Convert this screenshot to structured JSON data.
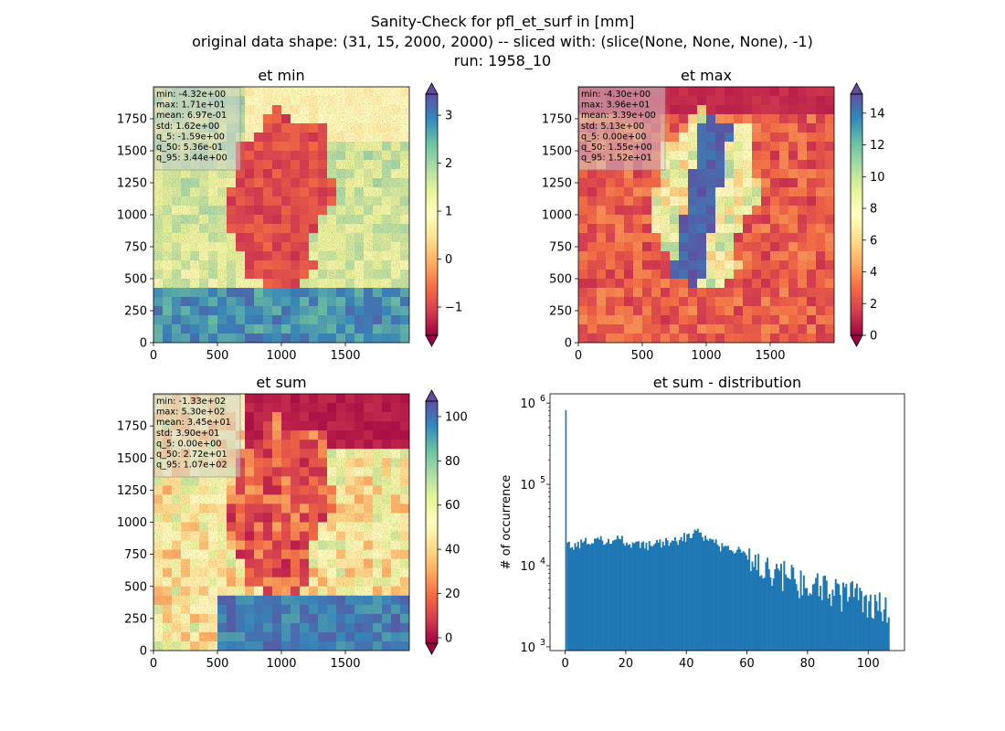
{
  "suptitle": {
    "line1": "Sanity-Check for pfl_et_surf in [mm]",
    "line2": "original data shape: (31, 15, 2000, 2000) -- sliced with: (slice(None, None, None), -1)",
    "line3": "run: 1958_10"
  },
  "colors": {
    "hist_bar": "#1f77b4",
    "stats_box_bg": "#d3d3d3",
    "colormap": "Spectral",
    "colormap_stops": [
      "#9e0142",
      "#d53e4f",
      "#f46d43",
      "#fdae61",
      "#fee08b",
      "#ffffbf",
      "#e6f598",
      "#abdda4",
      "#66c2a5",
      "#3288bd",
      "#5e4fa2"
    ]
  },
  "chart_data": [
    {
      "type": "heatmap",
      "title": "et min",
      "xlim": [
        0,
        2000
      ],
      "ylim": [
        0,
        2000
      ],
      "xticks": [
        "0",
        "500",
        "1000",
        "1500"
      ],
      "yticks": [
        "0",
        "250",
        "500",
        "750",
        "1000",
        "1250",
        "1500",
        "1750"
      ],
      "colorbar": {
        "min": -1.59,
        "max": 3.44,
        "extend": "both",
        "ticks": [
          "−1",
          "0",
          "1",
          "2",
          "3"
        ],
        "tick_values": [
          -1,
          0,
          1,
          2,
          3
        ]
      },
      "stats": [
        "min: -4.32e+00",
        "max: 1.71e+01",
        "mean: 6.97e-01",
        "std: 1.62e+00",
        "q_5: -1.59e+00",
        "q_50: 5.36e-01",
        "q_95: 3.44e+00"
      ]
    },
    {
      "type": "heatmap",
      "title": "et max",
      "xlim": [
        0,
        2000
      ],
      "ylim": [
        0,
        2000
      ],
      "xticks": [
        "0",
        "500",
        "1000",
        "1500"
      ],
      "yticks": [
        "0",
        "250",
        "500",
        "750",
        "1000",
        "1250",
        "1500",
        "1750"
      ],
      "colorbar": {
        "min": 0,
        "max": 15.2,
        "extend": "both",
        "ticks": [
          "0",
          "2",
          "4",
          "6",
          "8",
          "10",
          "12",
          "14"
        ],
        "tick_values": [
          0,
          2,
          4,
          6,
          8,
          10,
          12,
          14
        ]
      },
      "stats": [
        "min: -4.30e+00",
        "max: 3.96e+01",
        "mean: 3.39e+00",
        "std: 5.13e+00",
        "q_5: 0.00e+00",
        "q_50: 1.55e+00",
        "q_95: 1.52e+01"
      ]
    },
    {
      "type": "heatmap",
      "title": "et sum",
      "xlim": [
        0,
        2000
      ],
      "ylim": [
        0,
        2000
      ],
      "xticks": [
        "0",
        "500",
        "1000",
        "1500"
      ],
      "yticks": [
        "0",
        "250",
        "500",
        "750",
        "1000",
        "1250",
        "1500",
        "1750"
      ],
      "colorbar": {
        "min": -2.5,
        "max": 107,
        "extend": "both",
        "ticks": [
          "0",
          "20",
          "40",
          "60",
          "80",
          "100"
        ],
        "tick_values": [
          0,
          20,
          40,
          60,
          80,
          100
        ]
      },
      "stats": [
        "min: -1.33e+02",
        "max: 5.30e+02",
        "mean: 3.45e+01",
        "std: 3.90e+01",
        "q_5: 0.00e+00",
        "q_50: 2.72e+01",
        "q_95: 1.07e+02"
      ]
    },
    {
      "type": "bar",
      "title": "et sum - distribution",
      "ylabel": "# of occurrence",
      "yscale": "log",
      "xlim": [
        -5,
        112
      ],
      "ylim": [
        900,
        1300000
      ],
      "xticks": [
        "0",
        "20",
        "40",
        "60",
        "80",
        "100"
      ],
      "xtick_values": [
        0,
        20,
        40,
        60,
        80,
        100
      ],
      "ytick_exponents": [
        "3",
        "4",
        "5",
        "6"
      ],
      "bin_width": 0.5,
      "spike": {
        "x": 0,
        "count": 820000
      },
      "trend": [
        [
          0.5,
          17000
        ],
        [
          5,
          19000
        ],
        [
          10,
          20000
        ],
        [
          15,
          21000
        ],
        [
          20,
          20000
        ],
        [
          25,
          18000
        ],
        [
          30,
          18000
        ],
        [
          35,
          20000
        ],
        [
          40,
          23000
        ],
        [
          43,
          27000
        ],
        [
          45,
          22000
        ],
        [
          50,
          18000
        ],
        [
          55,
          16000
        ],
        [
          58,
          15000
        ],
        [
          60,
          12000
        ],
        [
          65,
          10000
        ],
        [
          70,
          8500
        ],
        [
          75,
          7500
        ],
        [
          80,
          6000
        ],
        [
          85,
          5500
        ],
        [
          90,
          5000
        ],
        [
          95,
          4500
        ],
        [
          100,
          4000
        ],
        [
          104,
          3500
        ],
        [
          107,
          3200
        ]
      ]
    }
  ]
}
